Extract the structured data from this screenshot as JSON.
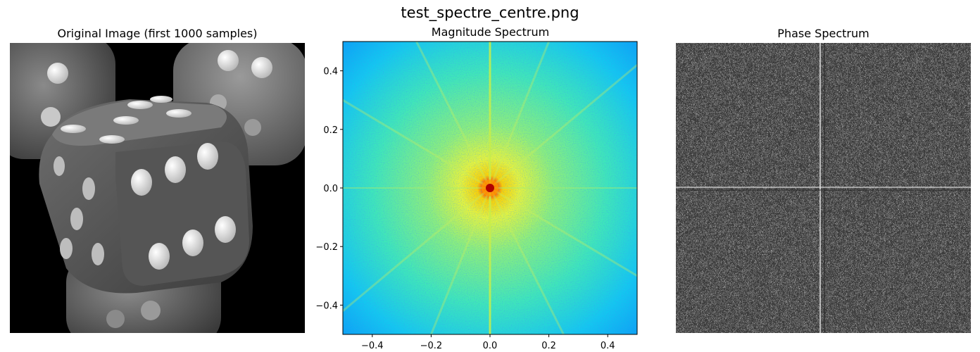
{
  "figure_title": "test_spectre_centre.png",
  "panels": {
    "original": {
      "title": "Original Image (first 1000 samples)"
    },
    "magnitude": {
      "title": "Magnitude Spectrum"
    },
    "phase": {
      "title": "Phase Spectrum"
    }
  },
  "chart_data": [
    {
      "type": "image",
      "title": "Original Image (first 1000 samples)",
      "content": "grayscale photo of dice",
      "axes": "off"
    },
    {
      "type": "heatmap",
      "title": "Magnitude Spectrum",
      "colormap": "jet",
      "xlim": [
        -0.5,
        0.5
      ],
      "ylim": [
        -0.5,
        0.5
      ],
      "xticks": [
        -0.4,
        -0.2,
        0.0,
        0.2,
        0.4
      ],
      "yticks": [
        -0.4,
        -0.2,
        0.0,
        0.2,
        0.4
      ],
      "xtick_labels": [
        "−0.4",
        "−0.2",
        "0.0",
        "0.2",
        "0.4"
      ],
      "ytick_labels": [
        "−0.4",
        "−0.2",
        "0.0",
        "0.2",
        "0.4"
      ],
      "peak": [
        0.0,
        0.0
      ],
      "xlabel": "",
      "ylabel": ""
    },
    {
      "type": "heatmap",
      "title": "Phase Spectrum",
      "colormap": "gray",
      "axes": "off"
    }
  ]
}
